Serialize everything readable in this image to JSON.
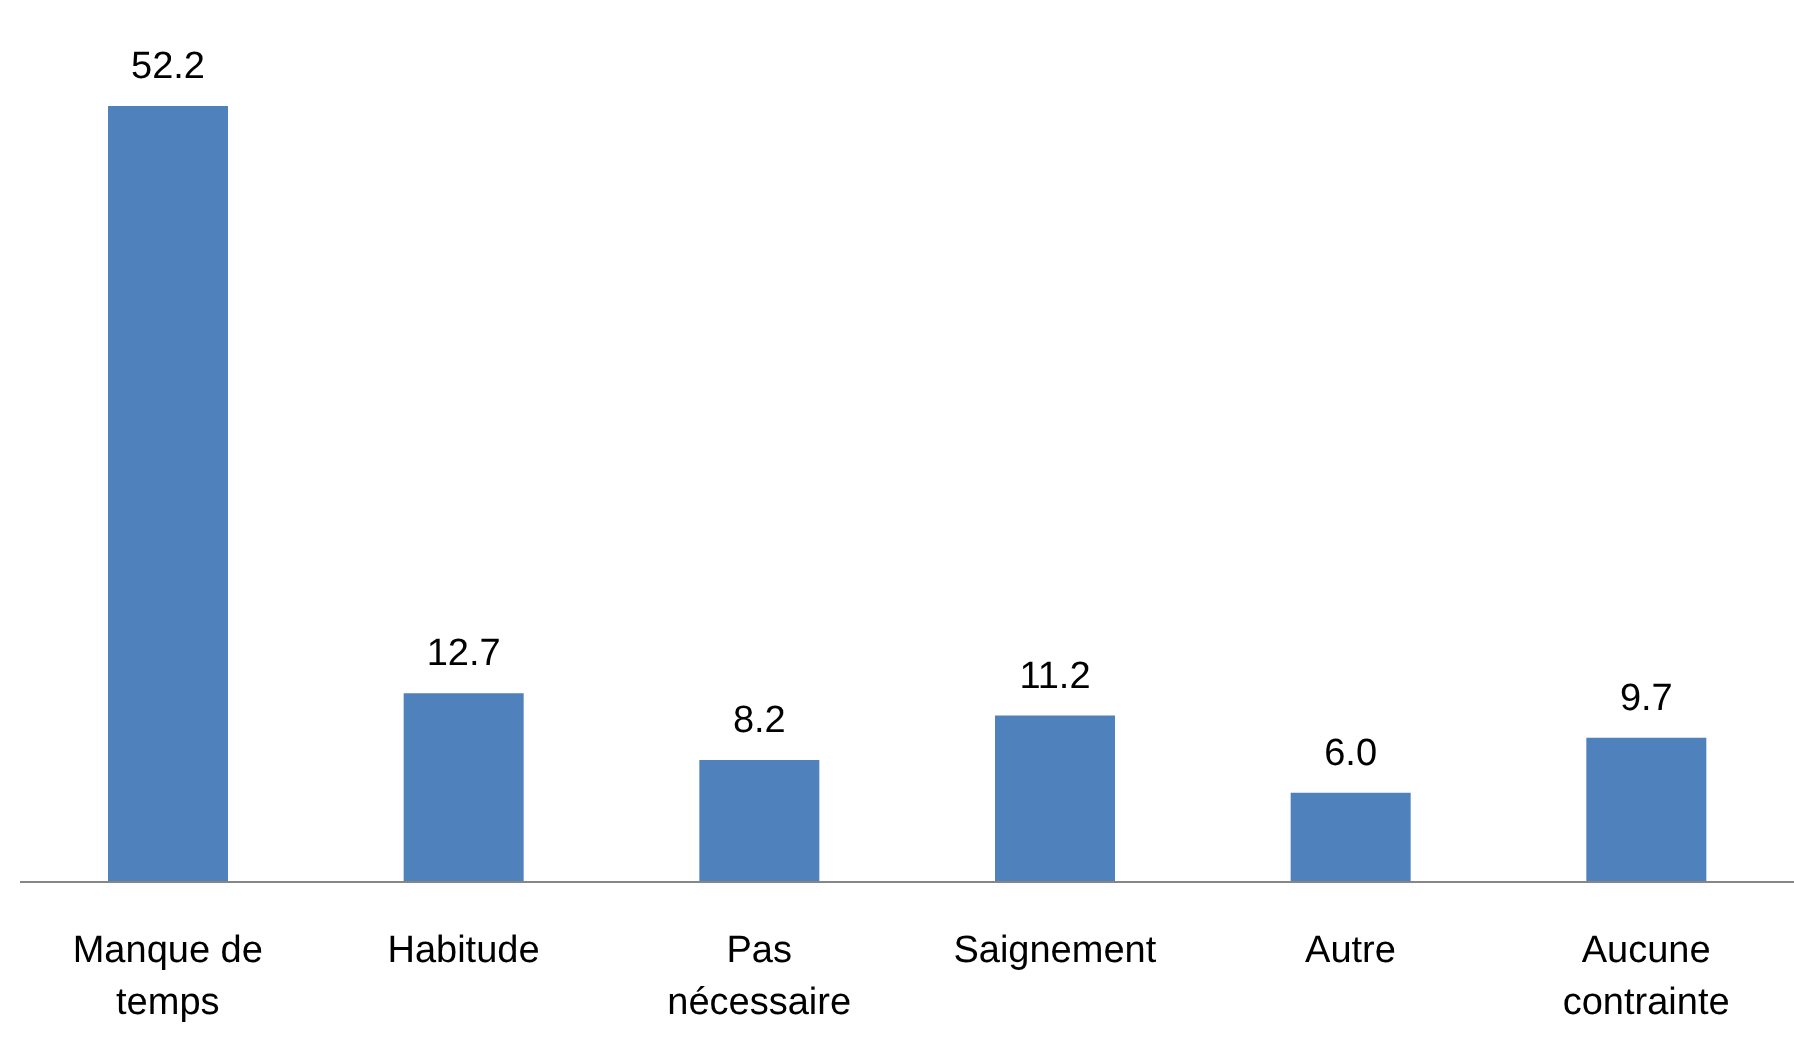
{
  "chart_data": {
    "type": "bar",
    "categories": [
      "Manque de temps",
      "Habitude",
      "Pas nécessaire",
      "Saignement",
      "Autre",
      "Aucune contrainte"
    ],
    "values": [
      52.2,
      12.7,
      8.2,
      11.2,
      6.0,
      9.7
    ],
    "value_labels": [
      "52.2",
      "12.7",
      "8.2",
      "11.2",
      "6.0",
      "9.7"
    ],
    "color": "#4f81bd"
  }
}
